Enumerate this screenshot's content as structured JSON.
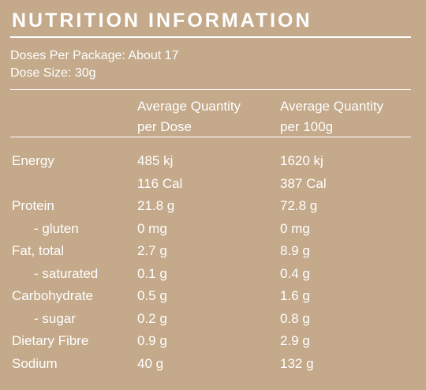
{
  "title": "NUTRITION INFORMATION",
  "doses_per_package": "Doses Per Package: About 17",
  "dose_size": "Dose Size: 30g",
  "columns": [
    {
      "line1": "Average Quantity",
      "line2": "per Dose"
    },
    {
      "line1": "Average Quantity",
      "line2": "per 100g"
    }
  ],
  "rows": [
    {
      "label": "Energy",
      "per_dose": "485 kj",
      "per_100g": "1620 kj"
    },
    {
      "label": "",
      "per_dose": "116 Cal",
      "per_100g": "387 Cal"
    },
    {
      "label": "Protein",
      "per_dose": "21.8 g",
      "per_100g": "72.8 g"
    },
    {
      "label": "- gluten",
      "per_dose": "0 mg",
      "per_100g": "0 mg"
    },
    {
      "label": "Fat, total",
      "per_dose": "2.7 g",
      "per_100g": "8.9 g"
    },
    {
      "label": "- saturated",
      "per_dose": "0.1 g",
      "per_100g": "0.4 g"
    },
    {
      "label": "Carbohydrate",
      "per_dose": "0.5 g",
      "per_100g": "1.6 g"
    },
    {
      "label": "- sugar",
      "per_dose": "0.2 g",
      "per_100g": "0.8 g"
    },
    {
      "label": "Dietary Fibre",
      "per_dose": "0.9 g",
      "per_100g": "2.9 g"
    },
    {
      "label": "Sodium",
      "per_dose": "40 g",
      "per_100g": "132 g"
    }
  ]
}
